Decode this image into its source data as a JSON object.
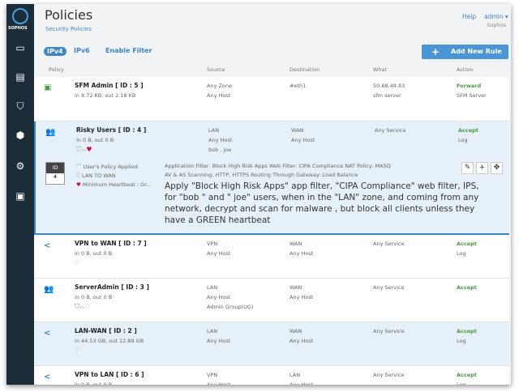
{
  "sidebar": {
    "brand": "SOPHOS",
    "items": [
      {
        "icon": "monitor-icon"
      },
      {
        "icon": "reports-icon"
      },
      {
        "icon": "shield-icon"
      },
      {
        "icon": "protection-icon"
      },
      {
        "icon": "gear-icon"
      },
      {
        "icon": "box-icon"
      }
    ]
  },
  "header": {
    "title": "Policies",
    "subtitle": "Security Policies",
    "help": "Help",
    "user": "admin ▾",
    "org": "Sophos"
  },
  "tabs": [
    "IPv4",
    "IPv6",
    "Enable Filter"
  ],
  "add_rule": "Add New Rule",
  "columns": [
    "Policy",
    "Source",
    "Destination",
    "What",
    "Action"
  ],
  "colors": {
    "accent": "#3a87c8",
    "accept": "#4a9a40",
    "sidebar": "#1c2d3a"
  },
  "rules": [
    {
      "name": "SFM Admin  [ ID : 5 ]",
      "traffic": "in 8.72 KB, out 2.18 KB",
      "source": [
        "Any Zone",
        "Any Host"
      ],
      "destination": [
        "#eth1"
      ],
      "what": [
        "50.68.48.83",
        "sfm server"
      ],
      "action": "Forward",
      "action2": "SFM Server",
      "icon": "briefcase-icon"
    },
    {
      "name": "Risky Users  [ ID : 4 ]",
      "traffic": "in 0 B, out 0 B",
      "source": [
        "LAN",
        "Any Host",
        "bob , joe"
      ],
      "destination": [
        "WAN",
        "Any Host"
      ],
      "what": [
        "Any Service"
      ],
      "action": "Accept",
      "action2": "Log",
      "icon": "users-icon",
      "details": {
        "id_label": "ID",
        "id": "4",
        "left": [
          "User's Policy Applied",
          "LAN TO WAN",
          "Minimum Heartbeat : Gr..."
        ],
        "line1": "Application Filter: Block High Risk Apps    Web Filter: CIPA Compliance    NAT Policy: MASQ",
        "line2": "AV & AS Scanning: HTTP, HTTPS    Routing Through Gateway: Load Balance",
        "description": "Apply \"Block High Risk Apps\" app filter, \"CIPA Compliance\" web filter, IPS, for \"bob \" and \" joe\" users, when in the \"LAN\" zone, and coming from any network, decrypt and scan for malware , but block all clients unless they have a GREEN heartbeat"
      }
    },
    {
      "name": "VPN to WAN  [ ID : 7 ]",
      "traffic": "in 0 B, out 0 B",
      "source": [
        "VPN",
        "Any Host"
      ],
      "destination": [
        "WAN",
        "Any Host"
      ],
      "what": [
        "Any Service"
      ],
      "action": "Accept",
      "action2": "Log",
      "icon": "share-icon"
    },
    {
      "name": "ServerAdmin  [ ID : 3 ]",
      "traffic": "in 0 B, out 0 B",
      "source": [
        "LAN",
        "Any Host",
        "Admin Group(UG)"
      ],
      "destination": [
        "WAN",
        "Any Host"
      ],
      "what": [
        "Any Service"
      ],
      "action": "Accept",
      "action2": "",
      "icon": "users-icon"
    },
    {
      "name": "LAN-WAN  [ ID : 2 ]",
      "traffic": "in 44.53 GB, out 12.89 GB",
      "source": [
        "LAN",
        "Any Host"
      ],
      "destination": [
        "WAN",
        "Any Host"
      ],
      "what": [
        "Any Service"
      ],
      "action": "Accept",
      "action2": "Log",
      "icon": "share-icon"
    },
    {
      "name": "VPN to LAN  [ ID : 6 ]",
      "traffic": "in 0 B, out 0 B",
      "source": [
        "VPN",
        "Any Host"
      ],
      "destination": [
        "LAN",
        "Any Host"
      ],
      "what": [
        "Any Service"
      ],
      "action": "Accept",
      "action2": "Log",
      "icon": "share-icon"
    }
  ]
}
